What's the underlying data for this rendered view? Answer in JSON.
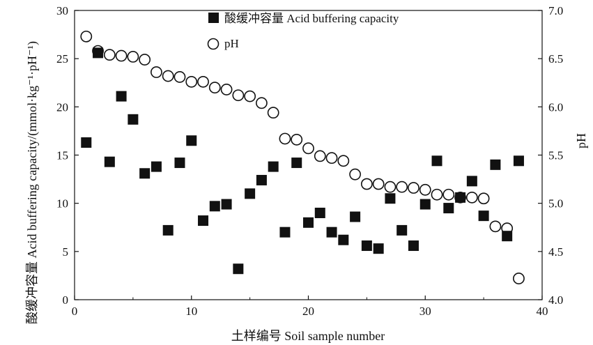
{
  "chart_data": {
    "type": "scatter",
    "xlabel": "土样编号 Soil sample number",
    "ylabel_left": "酸缓冲容量 Acid buffering capacity/(mmol·kg⁻¹·pH⁻¹)",
    "ylabel_right": "pH",
    "xlim": [
      0,
      40
    ],
    "ylim_left": [
      0,
      30
    ],
    "ylim_right": [
      4.0,
      7.0
    ],
    "xticks": [
      "0",
      "10",
      "20",
      "30",
      "40"
    ],
    "yticks_left": [
      "0",
      "5",
      "10",
      "15",
      "20",
      "25",
      "30"
    ],
    "yticks_right": [
      "4.0",
      "4.5",
      "5.0",
      "5.5",
      "6.0",
      "6.5",
      "7.0"
    ],
    "legend_position": "top-center",
    "grid": false,
    "series": [
      {
        "name": "酸缓冲容量 Acid buffering capacity",
        "axis": "left",
        "marker": "filled-square",
        "color": "#111111",
        "x": [
          1,
          2,
          3,
          4,
          5,
          6,
          7,
          8,
          9,
          10,
          11,
          12,
          13,
          14,
          15,
          16,
          17,
          18,
          19,
          20,
          21,
          22,
          23,
          24,
          25,
          26,
          27,
          28,
          29,
          30,
          31,
          32,
          33,
          34,
          35,
          36,
          37,
          38
        ],
        "y": [
          16.3,
          25.6,
          14.3,
          21.1,
          18.7,
          13.1,
          13.8,
          7.2,
          14.2,
          16.5,
          8.2,
          9.7,
          9.9,
          3.2,
          11.0,
          12.4,
          13.8,
          7.0,
          14.2,
          8.0,
          9.0,
          7.0,
          6.2,
          8.6,
          5.6,
          5.3,
          10.5,
          7.2,
          5.6,
          9.9,
          14.4,
          9.5,
          10.6,
          12.3,
          8.7,
          14.0,
          6.6,
          14.4
        ]
      },
      {
        "name": "pH",
        "axis": "right",
        "marker": "open-circle",
        "color": "#111111",
        "x": [
          1,
          2,
          3,
          4,
          5,
          6,
          7,
          8,
          9,
          10,
          11,
          12,
          13,
          14,
          15,
          16,
          17,
          18,
          19,
          20,
          21,
          22,
          23,
          24,
          25,
          26,
          27,
          28,
          29,
          30,
          31,
          32,
          33,
          34,
          35,
          36,
          37,
          38
        ],
        "y": [
          6.73,
          6.58,
          6.54,
          6.53,
          6.52,
          6.49,
          6.36,
          6.32,
          6.31,
          6.26,
          6.26,
          6.2,
          6.18,
          6.12,
          6.11,
          6.04,
          5.94,
          5.67,
          5.66,
          5.57,
          5.49,
          5.47,
          5.44,
          5.3,
          5.2,
          5.2,
          5.17,
          5.17,
          5.16,
          5.14,
          5.09,
          5.09,
          5.06,
          5.06,
          5.05,
          4.76,
          4.74,
          4.22
        ]
      }
    ]
  }
}
